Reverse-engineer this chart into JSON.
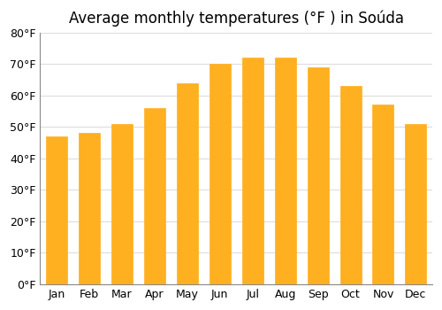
{
  "title": "Average monthly temperatures (°F ) in Soúda",
  "months": [
    "Jan",
    "Feb",
    "Mar",
    "Apr",
    "May",
    "Jun",
    "Jul",
    "Aug",
    "Sep",
    "Oct",
    "Nov",
    "Dec"
  ],
  "values": [
    47,
    48,
    51,
    56,
    64,
    70,
    72,
    72,
    69,
    63,
    57,
    51
  ],
  "bar_color_top": "#FFA500",
  "bar_color_bottom": "#FFB833",
  "ylim": [
    0,
    80
  ],
  "yticks": [
    0,
    10,
    20,
    30,
    40,
    50,
    60,
    70,
    80
  ],
  "ytick_labels": [
    "0°F",
    "10°F",
    "20°F",
    "30°F",
    "40°F",
    "50°F",
    "60°F",
    "70°F",
    "80°F"
  ],
  "background_color": "#ffffff",
  "grid_color": "#dddddd",
  "title_fontsize": 12,
  "tick_fontsize": 9
}
